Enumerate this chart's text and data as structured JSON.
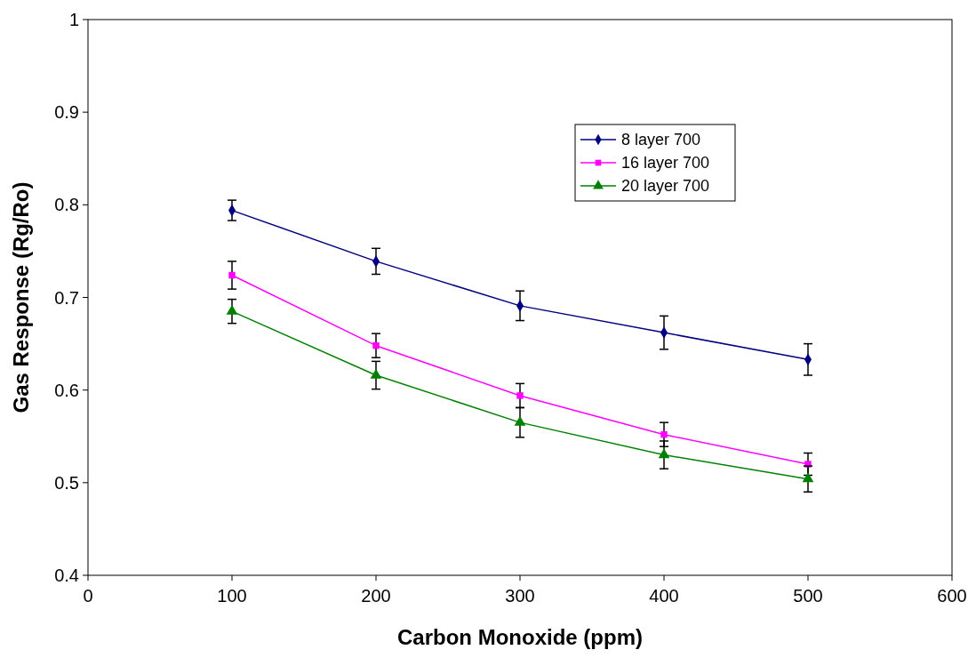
{
  "chart_data": {
    "type": "line",
    "xlabel": "Carbon Monoxide (ppm)",
    "ylabel": "Gas Response (Rg/Ro)",
    "x": [
      100,
      200,
      300,
      400,
      500
    ],
    "xlim": [
      0,
      600
    ],
    "xticks": [
      0,
      100,
      200,
      300,
      400,
      500,
      600
    ],
    "ylim": [
      0.4,
      1
    ],
    "yticks": [
      0.4,
      0.5,
      0.6,
      0.7,
      0.8,
      0.9,
      1
    ],
    "grid": false,
    "legend": "top right",
    "line_style": "solid",
    "series": [
      {
        "name": "8 layer 700",
        "color": "#000080",
        "marker": "diamond",
        "values": [
          0.794,
          0.739,
          0.691,
          0.662,
          0.633
        ],
        "errors": [
          0.011,
          0.014,
          0.016,
          0.018,
          0.017
        ]
      },
      {
        "name": "16 layer 700",
        "color": "#ff00ff",
        "marker": "square",
        "values": [
          0.724,
          0.648,
          0.594,
          0.552,
          0.52
        ],
        "errors": [
          0.015,
          0.013,
          0.013,
          0.013,
          0.012
        ]
      },
      {
        "name": "20 layer 700",
        "color": "#008000",
        "marker": "triangle",
        "values": [
          0.685,
          0.616,
          0.565,
          0.53,
          0.504
        ],
        "errors": [
          0.013,
          0.015,
          0.016,
          0.015,
          0.014
        ]
      }
    ]
  }
}
